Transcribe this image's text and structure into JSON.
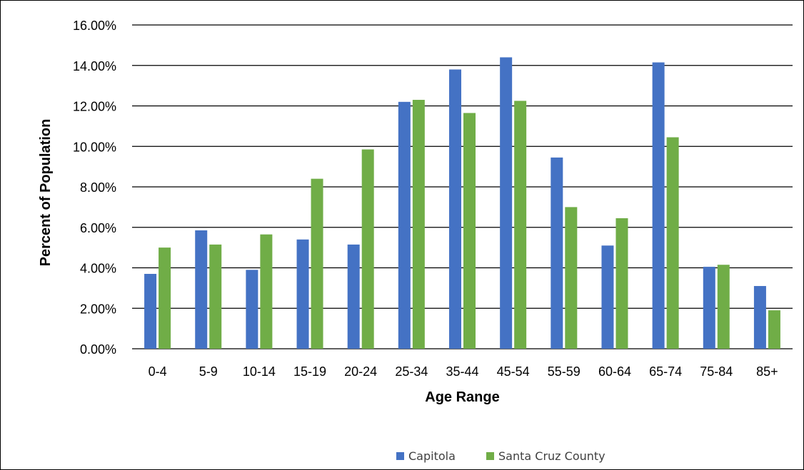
{
  "chart_data": {
    "type": "bar",
    "title": "",
    "xlabel": "Age Range",
    "ylabel": "Percent of Population",
    "ylim": [
      0,
      16
    ],
    "yticks": [
      "0.00%",
      "2.00%",
      "4.00%",
      "6.00%",
      "8.00%",
      "10.00%",
      "12.00%",
      "14.00%",
      "16.00%"
    ],
    "grid": true,
    "legend_position": "bottom",
    "categories": [
      "0-4",
      "5-9",
      "10-14",
      "15-19",
      "20-24",
      "25-34",
      "35-44",
      "45-54",
      "55-59",
      "60-64",
      "65-74",
      "75-84",
      "85+"
    ],
    "series": [
      {
        "name": "Capitola",
        "color": "#4472C4",
        "values": [
          3.7,
          5.85,
          3.9,
          5.4,
          5.15,
          12.2,
          13.8,
          14.4,
          9.45,
          5.1,
          14.15,
          4.05,
          3.1
        ]
      },
      {
        "name": "Santa Cruz County",
        "color": "#70AD47",
        "values": [
          5.0,
          5.15,
          5.65,
          8.4,
          9.85,
          12.3,
          11.65,
          12.25,
          7.0,
          6.45,
          10.45,
          4.15,
          1.9
        ]
      }
    ]
  }
}
